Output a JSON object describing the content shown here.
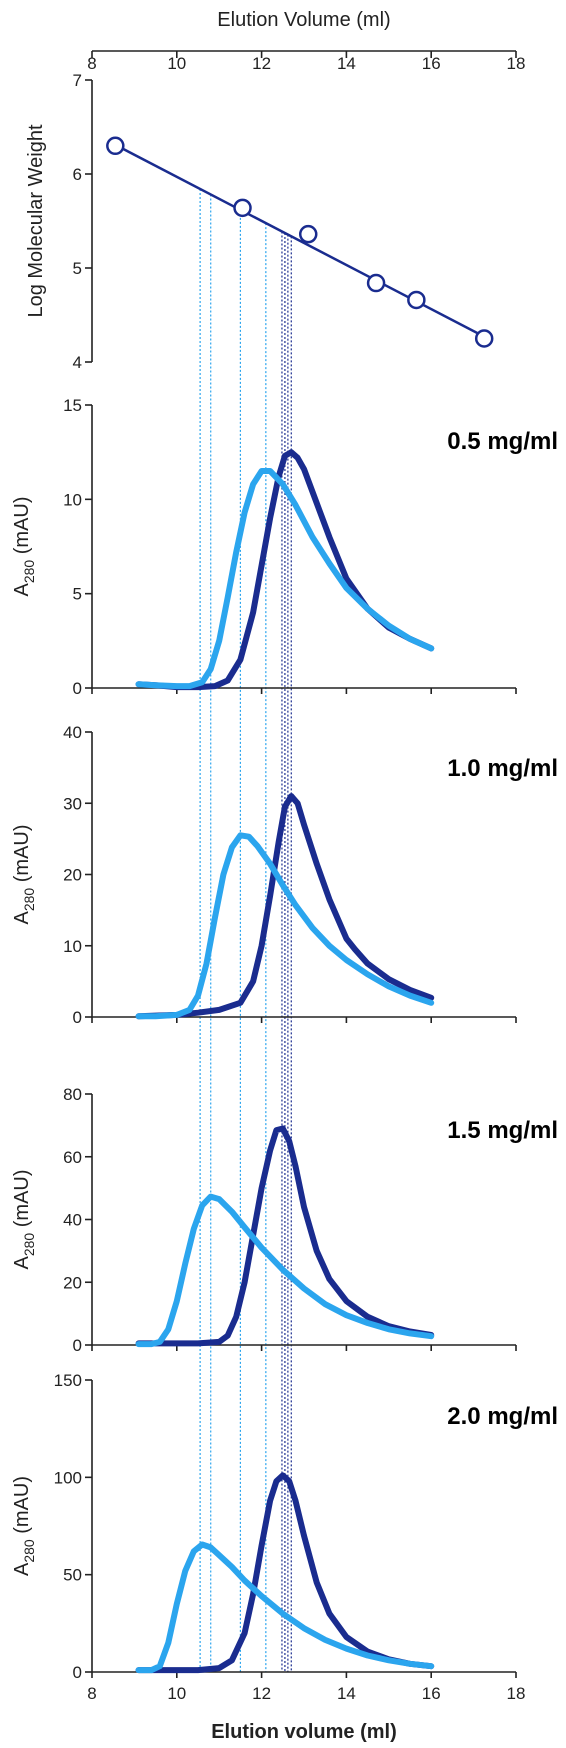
{
  "chart_data": [
    {
      "type": "scatter",
      "panel": "calibration",
      "title": "",
      "xlabel": "Elution Volume (ml)",
      "ylabel": "Log Molecular Weight",
      "xaxis_position": "top",
      "xlim": [
        8,
        18
      ],
      "ylim": [
        4,
        7
      ],
      "xticks": [
        "8",
        "10",
        "12",
        "14",
        "16",
        "18"
      ],
      "yticks": [
        "4",
        "5",
        "6",
        "7"
      ],
      "points": {
        "x": [
          8.55,
          11.55,
          13.1,
          14.7,
          15.65,
          17.25
        ],
        "y": [
          6.3,
          5.64,
          5.36,
          4.84,
          4.66,
          4.25
        ]
      },
      "fit_line": {
        "x": [
          8.55,
          17.25
        ],
        "y": [
          6.31,
          4.27
        ]
      },
      "colors": {
        "marker": "#1a2c8f",
        "line": "#1a2c8f"
      }
    },
    {
      "type": "line",
      "panel": "0.5 mg/ml",
      "annotation": "0.5 mg/ml",
      "ylabel_main": "A",
      "ylabel_sub": "280",
      "ylabel_unit": " (mAU)",
      "xlim": [
        8,
        18
      ],
      "ylim": [
        0,
        15
      ],
      "yticks": [
        "0",
        "5",
        "10",
        "15"
      ],
      "series": [
        {
          "color": "#1a2c8f",
          "x": [
            9.1,
            9.5,
            10.0,
            10.5,
            10.9,
            11.2,
            11.5,
            11.8,
            12.0,
            12.2,
            12.4,
            12.55,
            12.7,
            12.85,
            13.0,
            13.3,
            13.6,
            14.0,
            14.5,
            15.0,
            15.5,
            16.0
          ],
          "y": [
            0.2,
            0.15,
            0.05,
            0.05,
            0.1,
            0.4,
            1.5,
            4.0,
            6.5,
            9.0,
            11.2,
            12.3,
            12.5,
            12.2,
            11.6,
            9.8,
            8.0,
            5.8,
            4.2,
            3.2,
            2.6,
            2.1
          ]
        },
        {
          "color": "#2ba5ee",
          "x": [
            9.1,
            9.5,
            10.0,
            10.3,
            10.6,
            10.8,
            11.0,
            11.2,
            11.4,
            11.6,
            11.8,
            12.0,
            12.2,
            12.5,
            12.8,
            13.2,
            13.6,
            14.0,
            14.5,
            15.0,
            15.5,
            16.0
          ],
          "y": [
            0.2,
            0.15,
            0.1,
            0.1,
            0.3,
            1.0,
            2.5,
            4.8,
            7.2,
            9.3,
            10.8,
            11.5,
            11.5,
            10.8,
            9.7,
            8.0,
            6.6,
            5.3,
            4.2,
            3.3,
            2.6,
            2.1
          ]
        }
      ]
    },
    {
      "type": "line",
      "panel": "1.0 mg/ml",
      "annotation": "1.0 mg/ml",
      "ylabel_main": "A",
      "ylabel_sub": "280",
      "ylabel_unit": " (mAU)",
      "xlim": [
        8,
        18
      ],
      "ylim": [
        0,
        40
      ],
      "yticks": [
        "0",
        "10",
        "20",
        "30",
        "40"
      ],
      "series": [
        {
          "color": "#1a2c8f",
          "x": [
            9.1,
            9.5,
            10.0,
            10.5,
            11.0,
            11.5,
            11.8,
            12.0,
            12.2,
            12.4,
            12.55,
            12.7,
            12.85,
            13.0,
            13.3,
            13.6,
            14.0,
            14.2,
            14.5,
            15.0,
            15.5,
            16.0
          ],
          "y": [
            0.1,
            0.2,
            0.3,
            0.6,
            1.0,
            2.0,
            5.0,
            10.0,
            17.0,
            24.5,
            29.5,
            31.0,
            30.0,
            27.0,
            21.5,
            16.5,
            11.0,
            9.5,
            7.5,
            5.3,
            3.8,
            2.7
          ]
        },
        {
          "color": "#2ba5ee",
          "x": [
            9.1,
            9.5,
            10.0,
            10.3,
            10.5,
            10.7,
            10.9,
            11.1,
            11.3,
            11.5,
            11.7,
            11.9,
            12.2,
            12.5,
            12.8,
            13.2,
            13.6,
            14.0,
            14.5,
            15.0,
            15.5,
            16.0
          ],
          "y": [
            0.1,
            0.1,
            0.3,
            1.0,
            3.0,
            7.5,
            14.0,
            20.0,
            23.8,
            25.5,
            25.3,
            24.0,
            21.5,
            18.5,
            15.7,
            12.5,
            10.0,
            8.0,
            6.0,
            4.3,
            3.0,
            2.0
          ]
        }
      ]
    },
    {
      "type": "line",
      "panel": "1.5 mg/ml",
      "annotation": "1.5 mg/ml",
      "ylabel_main": "A",
      "ylabel_sub": "280",
      "ylabel_unit": " (mAU)",
      "xlim": [
        8,
        18
      ],
      "ylim": [
        0,
        80
      ],
      "yticks": [
        "0",
        "20",
        "40",
        "60",
        "80"
      ],
      "series": [
        {
          "color": "#1a2c8f",
          "x": [
            9.1,
            9.5,
            10.0,
            10.5,
            11.0,
            11.2,
            11.4,
            11.6,
            11.8,
            12.0,
            12.2,
            12.35,
            12.5,
            12.65,
            12.8,
            13.0,
            13.3,
            13.6,
            14.0,
            14.5,
            15.0,
            15.5,
            16.0
          ],
          "y": [
            0.5,
            0.5,
            0.5,
            0.5,
            1.0,
            3.0,
            9.0,
            20.0,
            35.0,
            50.0,
            62.0,
            68.5,
            69.0,
            65.0,
            57.0,
            44.0,
            30.0,
            21.0,
            14.0,
            9.0,
            6.0,
            4.3,
            3.2
          ]
        },
        {
          "color": "#2ba5ee",
          "x": [
            9.1,
            9.4,
            9.6,
            9.8,
            10.0,
            10.2,
            10.4,
            10.6,
            10.8,
            11.0,
            11.3,
            11.6,
            12.0,
            12.5,
            13.0,
            13.5,
            14.0,
            14.5,
            15.0,
            15.5,
            16.0
          ],
          "y": [
            0.3,
            0.3,
            1.0,
            5.0,
            14.0,
            26.0,
            37.0,
            44.5,
            47.3,
            46.5,
            42.5,
            37.5,
            31.0,
            24.0,
            18.0,
            13.0,
            9.5,
            7.0,
            5.0,
            3.7,
            2.8
          ]
        }
      ]
    },
    {
      "type": "line",
      "panel": "2.0 mg/ml",
      "annotation": "2.0 mg/ml",
      "ylabel_main": "A",
      "ylabel_sub": "280",
      "ylabel_unit": " (mAU)",
      "xlabel": "Elution volume (ml)",
      "xlim": [
        8,
        18
      ],
      "ylim": [
        0,
        150
      ],
      "xticks": [
        "8",
        "10",
        "12",
        "14",
        "16",
        "18"
      ],
      "yticks": [
        "0",
        "50",
        "100",
        "150"
      ],
      "series": [
        {
          "color": "#1a2c8f",
          "x": [
            9.1,
            9.5,
            10.0,
            10.5,
            11.0,
            11.3,
            11.6,
            11.8,
            12.0,
            12.2,
            12.35,
            12.5,
            12.65,
            12.8,
            13.0,
            13.3,
            13.6,
            14.0,
            14.5,
            15.0,
            15.5,
            16.0
          ],
          "y": [
            1.0,
            1.0,
            1.0,
            1.0,
            2.0,
            6.0,
            20.0,
            40.0,
            65.0,
            88.0,
            98.0,
            101.0,
            98.0,
            88.0,
            70.0,
            46.0,
            30.0,
            18.0,
            10.5,
            6.5,
            4.2,
            3.0
          ]
        },
        {
          "color": "#2ba5ee",
          "x": [
            9.1,
            9.4,
            9.6,
            9.8,
            10.0,
            10.2,
            10.4,
            10.6,
            10.8,
            11.0,
            11.3,
            11.6,
            12.0,
            12.5,
            13.0,
            13.5,
            14.0,
            14.5,
            15.0,
            15.5,
            16.0
          ],
          "y": [
            1.0,
            1.0,
            3.0,
            15.0,
            35.0,
            52.0,
            62.0,
            65.5,
            64.0,
            60.0,
            54.0,
            47.0,
            39.0,
            30.0,
            22.5,
            16.5,
            12.0,
            8.5,
            6.0,
            4.2,
            3.0
          ]
        }
      ]
    }
  ],
  "dotted_guides": [
    {
      "x": 10.55,
      "color": "#2ba5ee"
    },
    {
      "x": 10.8,
      "color": "#2ba5ee"
    },
    {
      "x": 11.5,
      "color": "#2ba5ee"
    },
    {
      "x": 12.1,
      "color": "#2ba5ee"
    },
    {
      "x": 12.48,
      "color": "#1a2c8f"
    },
    {
      "x": 12.55,
      "color": "#1a2c8f"
    },
    {
      "x": 12.62,
      "color": "#1a2c8f"
    },
    {
      "x": 12.7,
      "color": "#1a2c8f"
    }
  ]
}
